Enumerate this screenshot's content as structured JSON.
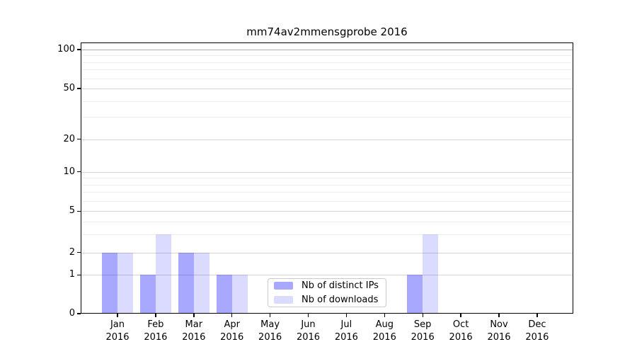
{
  "chart_data": {
    "type": "bar",
    "title": "mm74av2mmensgprobe 2016",
    "categories": [
      "Jan",
      "Feb",
      "Mar",
      "Apr",
      "May",
      "Jun",
      "Jul",
      "Aug",
      "Sep",
      "Oct",
      "Nov",
      "Dec"
    ],
    "category_year": "2016",
    "series": [
      {
        "name": "Nb of distinct IPs",
        "color": "rgba(0,0,255,0.34)",
        "values": [
          2,
          1,
          2,
          1,
          0,
          0,
          0,
          0,
          1,
          0,
          0,
          0
        ]
      },
      {
        "name": "Nb of downloads",
        "color": "rgba(0,0,255,0.14)",
        "values": [
          2,
          3,
          2,
          1,
          0,
          0,
          0,
          0,
          3,
          0,
          0,
          0
        ]
      }
    ],
    "xlabel": "",
    "ylabel": "",
    "yticks": [
      0,
      1,
      2,
      5,
      10,
      20,
      50,
      100
    ],
    "minor_yticks": [
      3,
      4,
      6,
      7,
      8,
      9,
      30,
      40,
      60,
      70,
      80,
      90
    ],
    "ylim": [
      0,
      115
    ],
    "yscale": "log-like (0, 1, 2, 5, 10, 20, 50, 100)",
    "grid": "horizontal",
    "legend_position": "inside bottom-center"
  },
  "legend": {
    "entries": [
      {
        "label": "Nb of distinct IPs",
        "color": "rgba(0,0,255,0.34)"
      },
      {
        "label": "Nb of downloads",
        "color": "rgba(0,0,255,0.14)"
      }
    ]
  }
}
